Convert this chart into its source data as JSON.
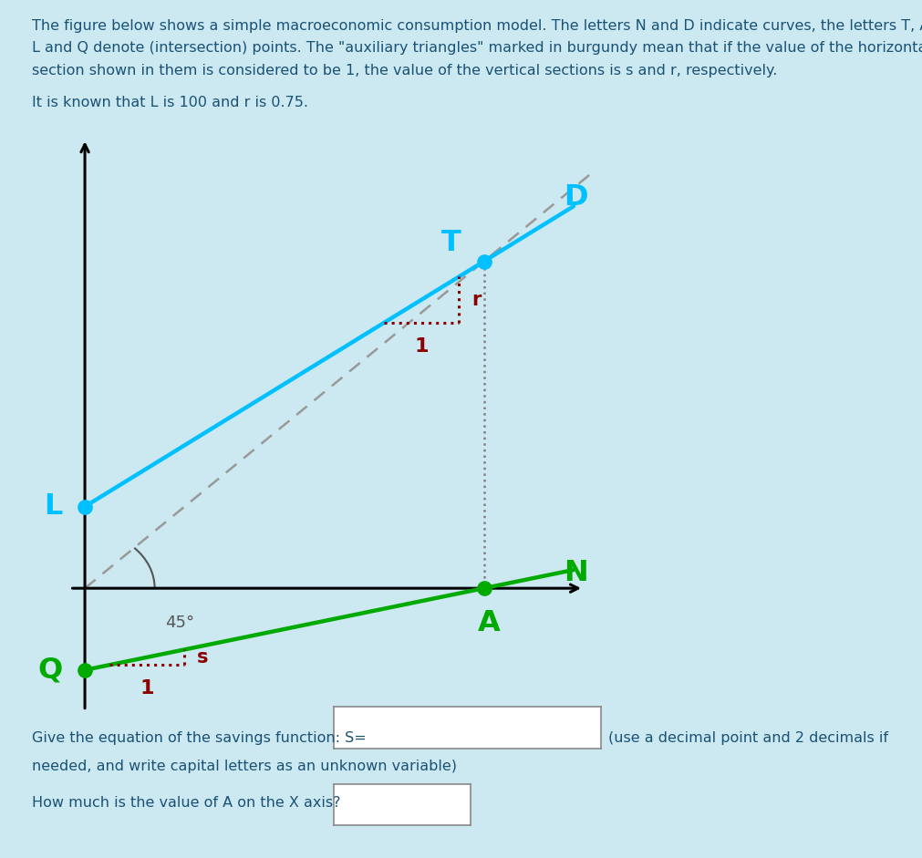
{
  "background_color": "#cce8f0",
  "fig_width": 10.11,
  "fig_height": 9.41,
  "dpi": 100,
  "plot_bg_color": "#ffffff",
  "desc_line1": "The figure below shows a simple macroeconomic consumption model. The letters N and D indicate curves, the letters T, A,",
  "desc_line2": "L and Q denote (intersection) points. The \"auxiliary triangles\" marked in burgundy mean that if the value of the horizontal",
  "desc_line3": "section shown in them is considered to be 1, the value of the vertical sections is s and r, respectively.",
  "known_text": "It is known that L is 100 and r is 0.75.",
  "question1_prefix": "Give the equation of the savings function: S=",
  "question1_suffix": "(use a decimal point and 2 decimals if",
  "question1_line2": "needed, and write capital letters as an unknown variable)",
  "question2": "How much is the value of A on the X axis?",
  "desc_color": "#1a5276",
  "line_D_color": "#00c0ff",
  "line_N_color": "#00aa00",
  "dashed_color": "#999999",
  "burgundy_color": "#8b0000",
  "label_D_color": "#00c0ff",
  "label_N_color": "#00aa00",
  "label_T_color": "#00c0ff",
  "label_L_color": "#00c0ff",
  "label_A_color": "#00aa00",
  "label_Q_color": "#00aa00",
  "label_45_color": "#555555",
  "dot_color_cyan": "#00c0ff",
  "dot_color_green": "#00aa00",
  "r_value": 0.75,
  "L_yint": 2.0,
  "xlim_min": -0.5,
  "xlim_max": 10.5,
  "ylim_min": -3.2,
  "ylim_max": 11.5
}
